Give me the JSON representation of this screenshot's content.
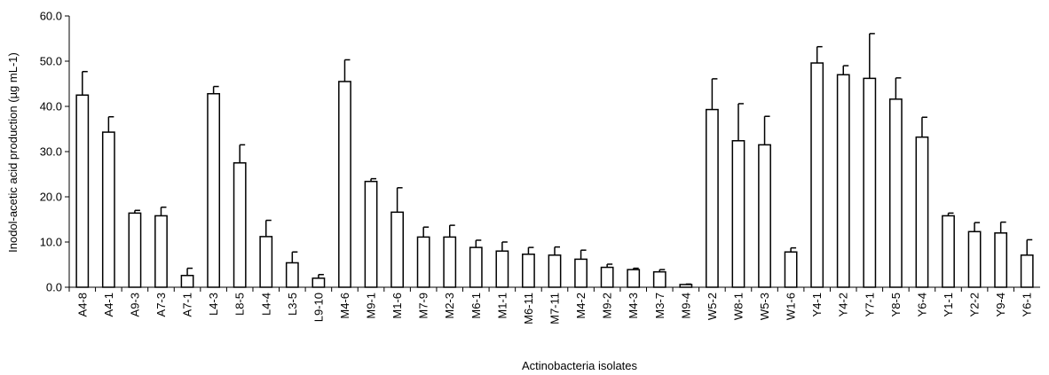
{
  "chart_data": {
    "type": "bar",
    "title": "",
    "xlabel": "Actinobacteria isolates",
    "ylabel": "Inodol-acetic acid production (µg mL-1)",
    "ylim": [
      0,
      60
    ],
    "yticks": [
      "0.0",
      "10.0",
      "20.0",
      "30.0",
      "40.0",
      "50.0",
      "60.0"
    ],
    "grid": false,
    "legend": "none",
    "bar_fill": "#ffffff",
    "bar_stroke": "#000000",
    "categories": [
      "A4-8",
      "A4-1",
      "A9-3",
      "A7-3",
      "A7-1",
      "L4-3",
      "L8-5",
      "L4-4",
      "L3-5",
      "L9-10",
      "M4-6",
      "M9-1",
      "M1-6",
      "M7-9",
      "M2-3",
      "M6-1",
      "M1-1",
      "M6-11",
      "M7-11",
      "M4-2",
      "M9-2",
      "M4-3",
      "M3-7",
      "M9-4",
      "W5-2",
      "W8-1",
      "W5-3",
      "W1-6",
      "Y4-1",
      "Y4-2",
      "Y7-1",
      "Y8-5",
      "Y6-4",
      "Y1-1",
      "Y2-2",
      "Y9-4",
      "Y6-1"
    ],
    "values": [
      42.5,
      34.3,
      16.4,
      15.8,
      2.6,
      42.8,
      27.5,
      11.2,
      5.4,
      2.0,
      45.5,
      23.4,
      16.6,
      11.1,
      11.1,
      8.8,
      8.0,
      7.3,
      7.1,
      6.2,
      4.4,
      3.9,
      3.4,
      0.6,
      39.3,
      32.4,
      31.5,
      7.8,
      49.6,
      47.0,
      46.2,
      41.6,
      33.2,
      15.8,
      12.3,
      12.0,
      7.1
    ],
    "errors": [
      5.2,
      3.4,
      0.6,
      1.9,
      1.6,
      1.6,
      4.0,
      3.6,
      2.4,
      0.8,
      4.8,
      0.6,
      5.4,
      2.2,
      2.6,
      1.6,
      2.0,
      1.5,
      1.8,
      2.0,
      0.7,
      0.3,
      0.5,
      0.1,
      6.8,
      8.2,
      6.3,
      0.9,
      3.6,
      2.0,
      9.9,
      4.7,
      4.4,
      0.6,
      2.0,
      2.4,
      3.4
    ]
  }
}
